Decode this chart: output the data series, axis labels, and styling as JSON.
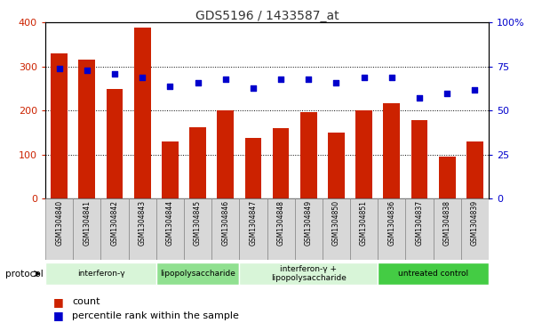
{
  "title": "GDS5196 / 1433587_at",
  "samples": [
    "GSM1304840",
    "GSM1304841",
    "GSM1304842",
    "GSM1304843",
    "GSM1304844",
    "GSM1304845",
    "GSM1304846",
    "GSM1304847",
    "GSM1304848",
    "GSM1304849",
    "GSM1304850",
    "GSM1304851",
    "GSM1304836",
    "GSM1304837",
    "GSM1304838",
    "GSM1304839"
  ],
  "counts": [
    330,
    315,
    250,
    388,
    130,
    163,
    200,
    137,
    160,
    197,
    150,
    200,
    216,
    178,
    95,
    130
  ],
  "percentiles": [
    74,
    73,
    71,
    69,
    64,
    66,
    68,
    63,
    68,
    68,
    66,
    69,
    69,
    57,
    60,
    62
  ],
  "groups": [
    {
      "label": "interferon-γ",
      "start": 0,
      "end": 4,
      "color": "#d8f5d8"
    },
    {
      "label": "lipopolysaccharide",
      "start": 4,
      "end": 7,
      "color": "#90e090"
    },
    {
      "label": "interferon-γ +\nlipopolysaccharide",
      "start": 7,
      "end": 12,
      "color": "#d8f5d8"
    },
    {
      "label": "untreated control",
      "start": 12,
      "end": 16,
      "color": "#44cc44"
    }
  ],
  "ylim_left": [
    0,
    400
  ],
  "ylim_right": [
    0,
    100
  ],
  "yticks_left": [
    0,
    100,
    200,
    300,
    400
  ],
  "yticks_right": [
    0,
    25,
    50,
    75,
    100
  ],
  "ytick_labels_right": [
    "0",
    "25",
    "50",
    "75",
    "100%"
  ],
  "bar_color": "#cc2200",
  "dot_color": "#0000cc",
  "bg_color": "#d8d8d8",
  "protocol_label": "protocol",
  "legend_count": "count",
  "legend_percentile": "percentile rank within the sample"
}
